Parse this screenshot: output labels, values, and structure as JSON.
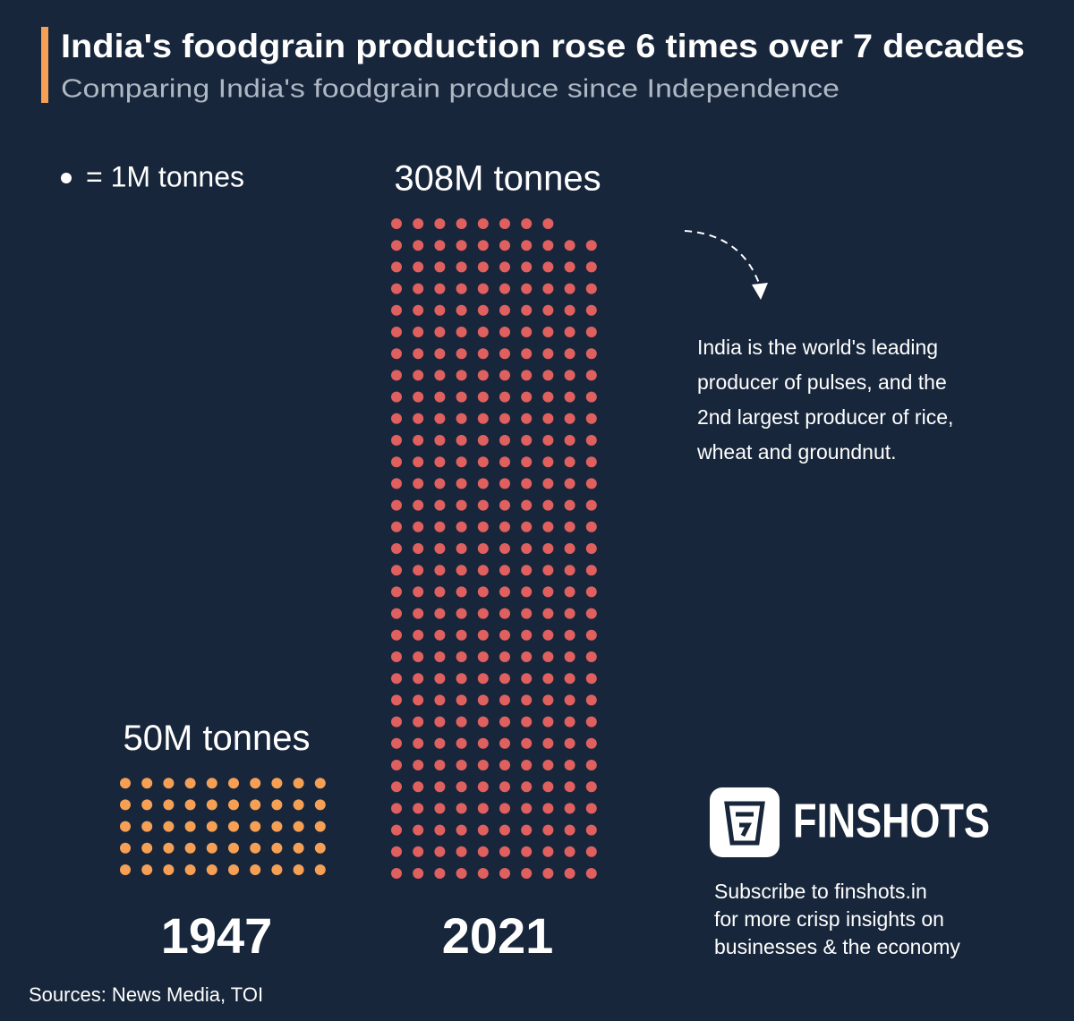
{
  "chart_data": {
    "type": "waffle",
    "title": "India's foodgrain production rose 6 times over 7 decades",
    "subtitle": "Comparing India's foodgrain produce since Independence",
    "legend": "= 1M tonnes",
    "categories": [
      "1947",
      "2021"
    ],
    "values": [
      50,
      308
    ],
    "value_labels": [
      "50M tonnes",
      "308M tonnes"
    ],
    "colors": [
      "#f5a055",
      "#e0605f"
    ],
    "annotation": [
      "India is the world's leading",
      "producer of pulses, and the",
      "2nd largest producer of rice,",
      "wheat and groundnut."
    ],
    "brand": "FINSHOTS",
    "subscribe": [
      "Subscribe to finshots.in",
      "for more crisp insights on",
      "businesses & the economy"
    ],
    "source": "Sources: News Media, TOI"
  }
}
